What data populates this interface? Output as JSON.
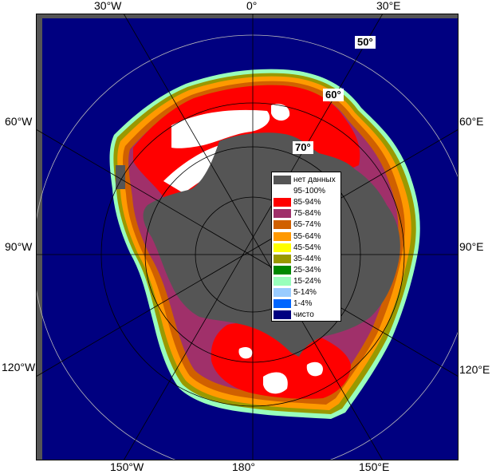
{
  "map": {
    "longitude_labels": {
      "top_left": "30°W",
      "top_center": "0°",
      "top_right": "30°E",
      "left_upper": "60°W",
      "left_middle": "90°W",
      "left_lower": "120°W",
      "right_upper": "60°E",
      "right_middle": "90°E",
      "right_lower": "120°E",
      "bottom_left": "150°W",
      "bottom_center": "180°",
      "bottom_right": "150°E"
    },
    "latitude_labels": {
      "lat50": "50°",
      "lat60": "60°",
      "lat70": "70°"
    },
    "colors": {
      "ocean": "#000080",
      "land": "#555555",
      "outer_frame": "#555555"
    }
  },
  "legend": {
    "items": [
      {
        "label": "нет данных",
        "color": "#555555"
      },
      {
        "label": "95-100%",
        "color": "#ffffff"
      },
      {
        "label": "85-94%",
        "color": "#ff0000"
      },
      {
        "label": "75-84%",
        "color": "#a0306a"
      },
      {
        "label": "65-74%",
        "color": "#d06000"
      },
      {
        "label": "55-64%",
        "color": "#ff9900"
      },
      {
        "label": "45-54%",
        "color": "#ffff00"
      },
      {
        "label": "35-44%",
        "color": "#999900"
      },
      {
        "label": "25-34%",
        "color": "#008800"
      },
      {
        "label": "15-24%",
        "color": "#99ffbb"
      },
      {
        "label": "5-14%",
        "color": "#99ccff"
      },
      {
        "label": "1-4%",
        "color": "#0066ff"
      },
      {
        "label": "чисто",
        "color": "#000080"
      }
    ]
  }
}
